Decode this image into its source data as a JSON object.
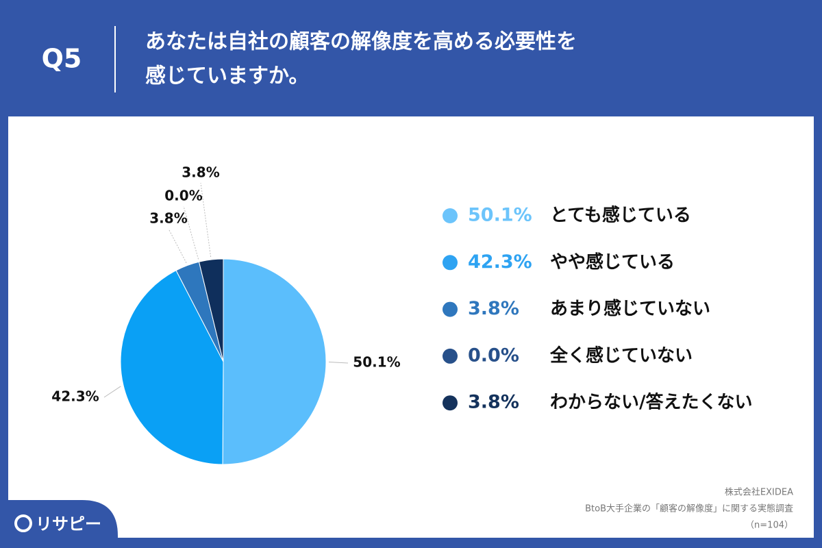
{
  "question": "Q5",
  "title": [
    "あなたは自社の顧客の解像度を高める必要性を",
    "感じていますか。"
  ],
  "chart_data": {
    "type": "pie",
    "categories": [
      "とても感じている",
      "やや感じている",
      "あまり感じていない",
      "全く感じていない",
      "わからない/答えたくない"
    ],
    "values": [
      50.1,
      42.3,
      3.8,
      0.0,
      3.8
    ],
    "value_labels": [
      "50.1%",
      "42.3%",
      "3.8%",
      "0.0%",
      "3.8%"
    ],
    "colors": [
      "#5bbefc",
      "#0aa0f5",
      "#2e77bd",
      "#24508c",
      "#0f2f5c"
    ],
    "legend_text_colors": [
      "#6cc4fb",
      "#2ea3f2",
      "#2f77bd",
      "#27508a",
      "#14325c"
    ]
  },
  "source": [
    "株式会社EXIDEA",
    "BtoB大手企業の「顧客の解像度」に関する実態調査",
    "（n=104）"
  ],
  "logo": "リサピー"
}
